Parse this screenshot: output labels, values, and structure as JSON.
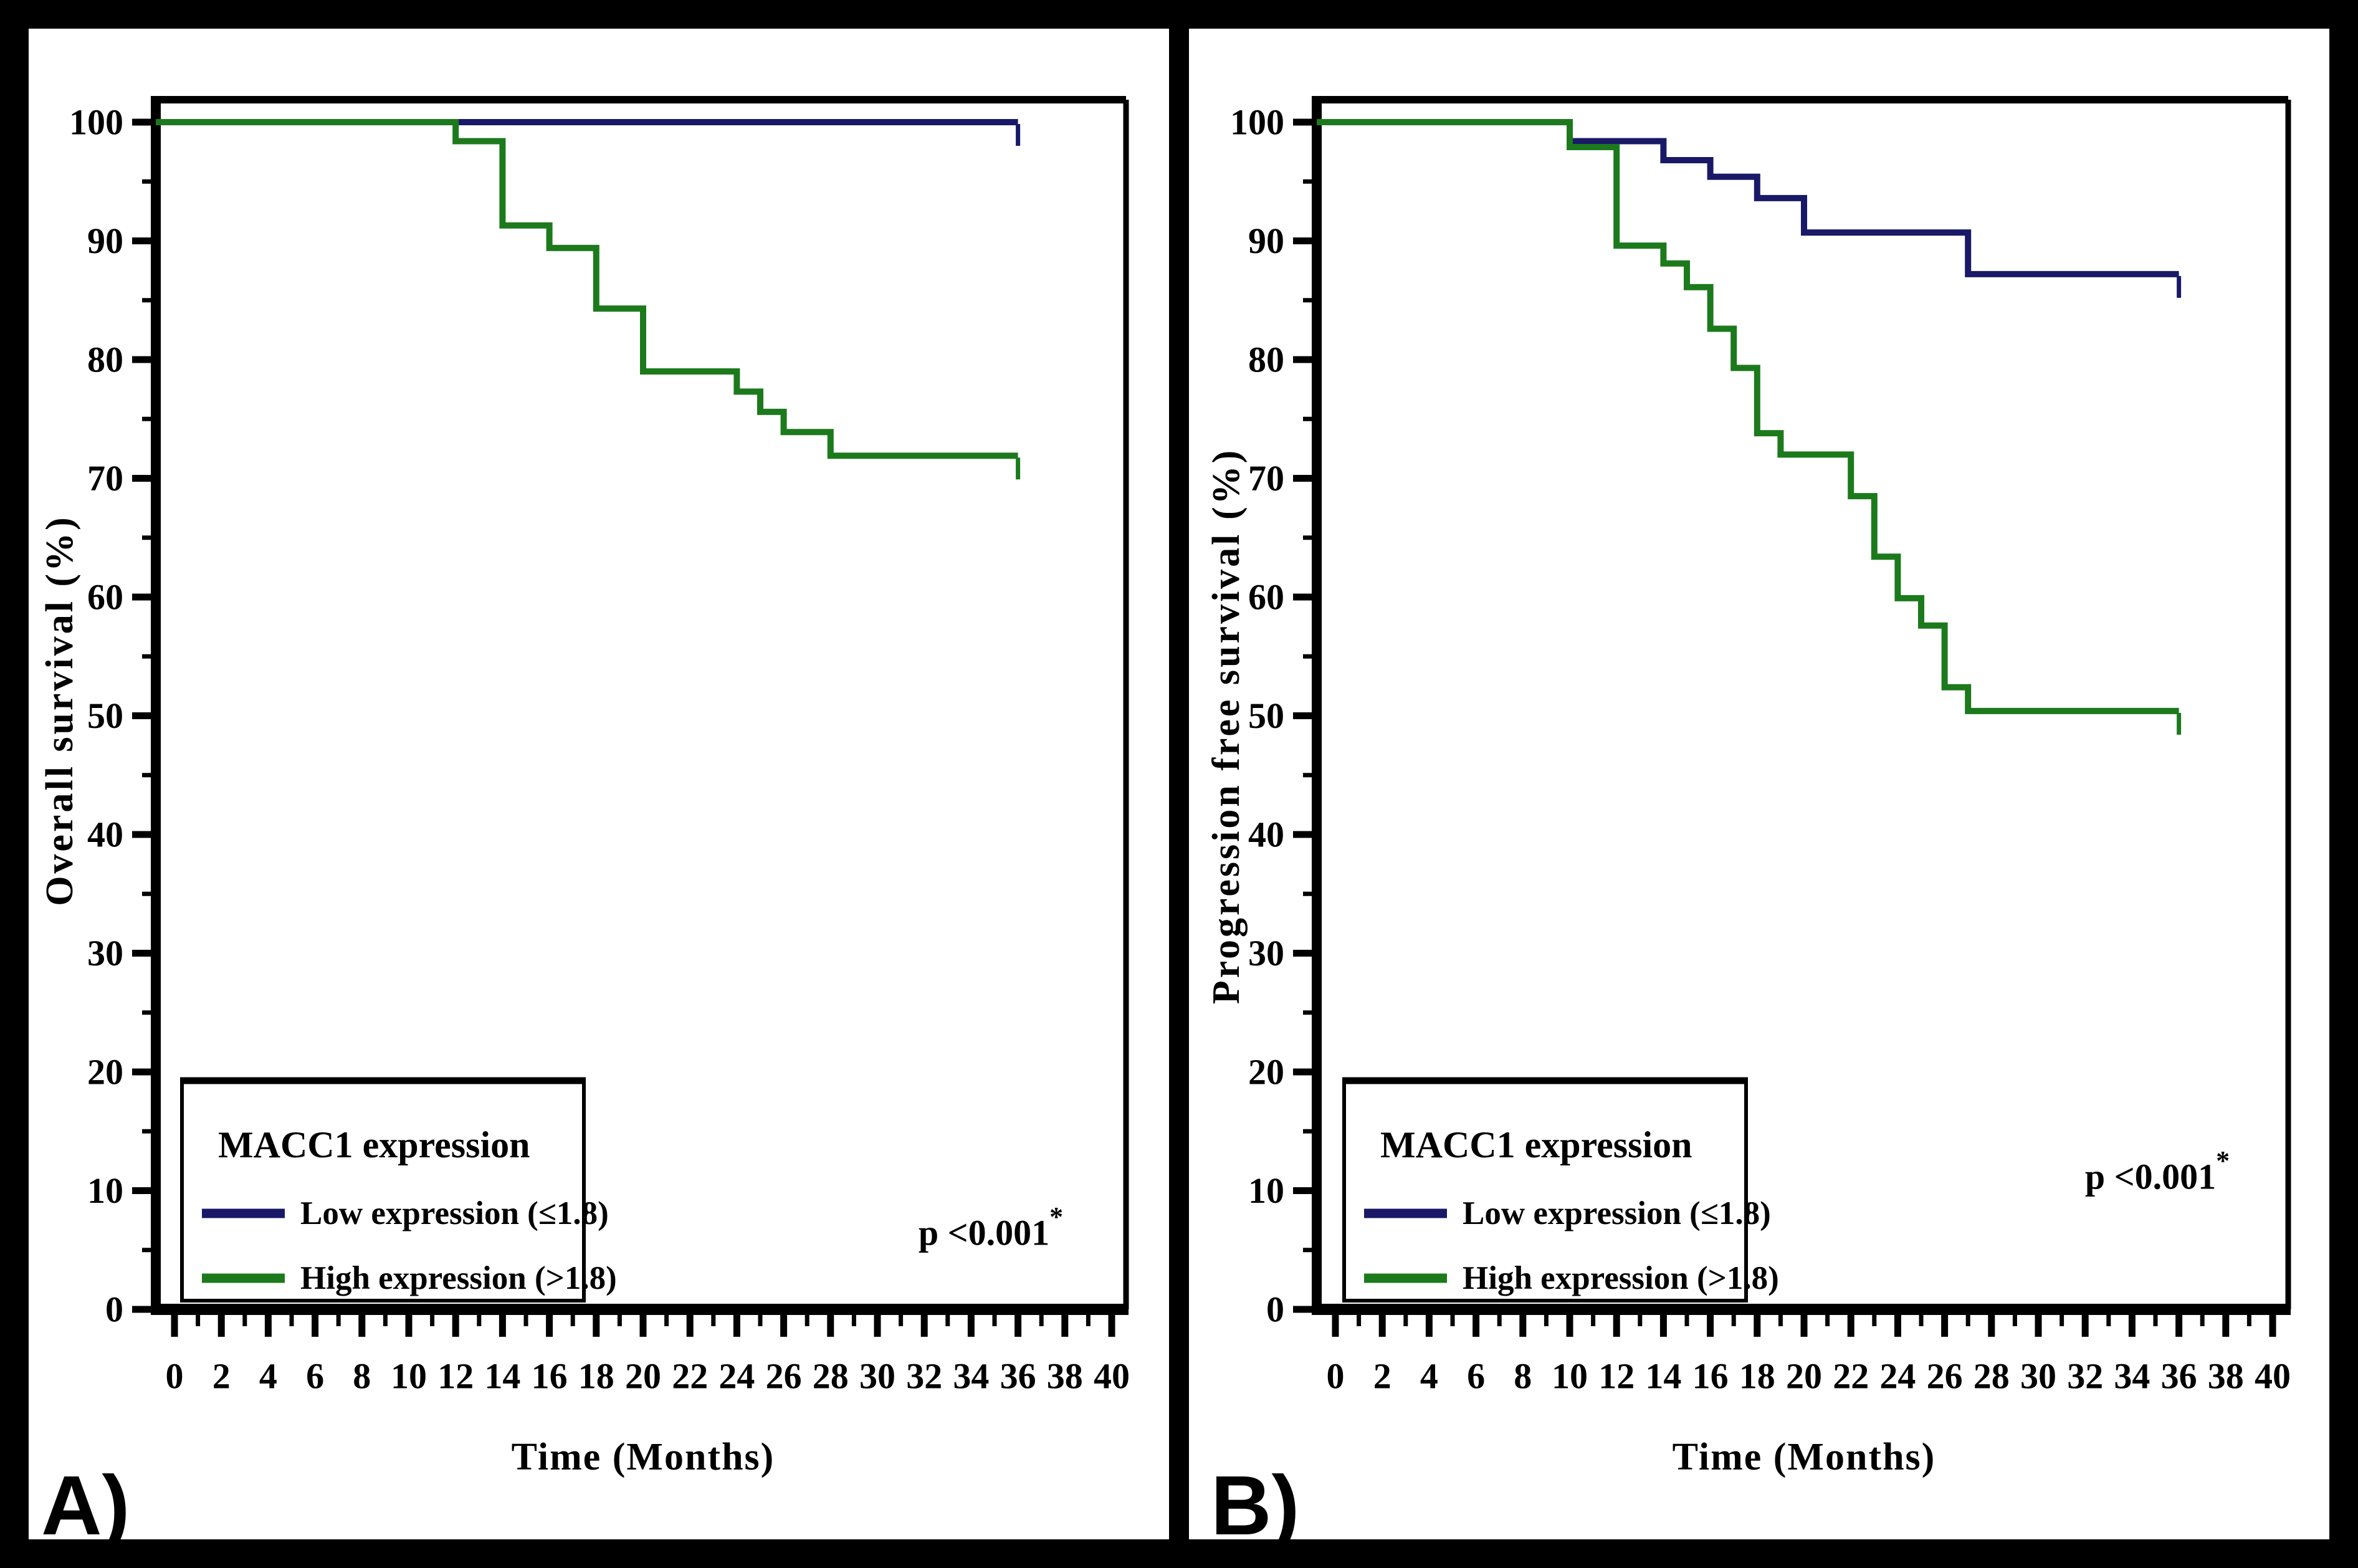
{
  "figure": {
    "background": "#ffffff",
    "border_color": "#000000",
    "divider_color": "#000000",
    "curve_colors": {
      "low": "#191968",
      "high": "#1c7a1c"
    }
  },
  "chart_data": [
    {
      "type": "line",
      "subtype": "kaplan-meier-step",
      "panel_label": "A)",
      "title": "",
      "xlabel": "Time (Months)",
      "ylabel": "Overall survival (%)",
      "xlim": [
        0,
        41
      ],
      "ylim": [
        0,
        102
      ],
      "grid": false,
      "x_tick_labels": [
        "0",
        "2",
        "4",
        "6",
        "8",
        "10",
        "12",
        "14",
        "16",
        "18",
        "20",
        "22",
        "24",
        "26",
        "28",
        "30",
        "32",
        "34",
        "36",
        "38",
        "40"
      ],
      "y_tick_labels": [
        "0",
        "10",
        "20",
        "30",
        "40",
        "50",
        "60",
        "70",
        "80",
        "90",
        "100"
      ],
      "legend": {
        "position": "lower-left",
        "title": "MACC1 expression",
        "items": [
          {
            "label": "Low expression (≤1.8)",
            "color": "#191968"
          },
          {
            "label": "High expression (>1.8)",
            "color": "#1c7a1c"
          }
        ]
      },
      "annotation": {
        "text": "p <0.001",
        "superscript": "*"
      },
      "series": [
        {
          "name": "Low expression (≤1.8)",
          "color": "#191968",
          "steps": [
            [
              0,
              100
            ],
            [
              36,
              100
            ]
          ],
          "censor_tick_at_end": true
        },
        {
          "name": "High expression (>1.8)",
          "color": "#1c7a1c",
          "steps": [
            [
              0,
              100
            ],
            [
              12,
              98.4
            ],
            [
              14,
              91.3
            ],
            [
              16,
              89.4
            ],
            [
              18,
              84.3
            ],
            [
              20,
              79.0
            ],
            [
              24,
              77.3
            ],
            [
              25,
              75.6
            ],
            [
              26,
              73.9
            ],
            [
              28,
              71.9
            ],
            [
              36,
              71.9
            ]
          ],
          "censor_tick_at_end": true
        }
      ]
    },
    {
      "type": "line",
      "subtype": "kaplan-meier-step",
      "panel_label": "B)",
      "title": "",
      "xlabel": "Time (Months)",
      "ylabel": "Progression free survival (%)",
      "xlim": [
        0,
        41
      ],
      "ylim": [
        0,
        102
      ],
      "grid": false,
      "x_tick_labels": [
        "0",
        "2",
        "4",
        "6",
        "8",
        "10",
        "12",
        "14",
        "16",
        "18",
        "20",
        "22",
        "24",
        "26",
        "28",
        "30",
        "32",
        "34",
        "36",
        "38",
        "40"
      ],
      "y_tick_labels": [
        "0",
        "10",
        "20",
        "30",
        "40",
        "50",
        "60",
        "70",
        "80",
        "90",
        "100"
      ],
      "legend": {
        "position": "lower-left",
        "title": "MACC1 expression",
        "items": [
          {
            "label": "Low expression (≤1.8)",
            "color": "#191968"
          },
          {
            "label": "High expression (>1.8)",
            "color": "#1c7a1c"
          }
        ]
      },
      "annotation": {
        "text": "p <0.001",
        "superscript": "*"
      },
      "series": [
        {
          "name": "Low expression (≤1.8)",
          "color": "#191968",
          "steps": [
            [
              0,
              100
            ],
            [
              10,
              98.4
            ],
            [
              14,
              96.8
            ],
            [
              16,
              95.4
            ],
            [
              18,
              93.6
            ],
            [
              20,
              90.7
            ],
            [
              27,
              87.2
            ],
            [
              36,
              87.2
            ]
          ],
          "censor_tick_at_end": true
        },
        {
          "name": "High expression (>1.8)",
          "color": "#1c7a1c",
          "steps": [
            [
              0,
              100
            ],
            [
              10,
              97.9
            ],
            [
              12,
              89.6
            ],
            [
              14,
              88.1
            ],
            [
              15,
              86.1
            ],
            [
              16,
              82.6
            ],
            [
              17,
              79.3
            ],
            [
              18,
              73.8
            ],
            [
              19,
              72.0
            ],
            [
              22,
              68.5
            ],
            [
              23,
              63.4
            ],
            [
              24,
              59.9
            ],
            [
              25,
              57.6
            ],
            [
              26,
              52.4
            ],
            [
              27,
              50.4
            ],
            [
              36,
              50.4
            ]
          ],
          "censor_tick_at_end": true
        }
      ]
    }
  ]
}
